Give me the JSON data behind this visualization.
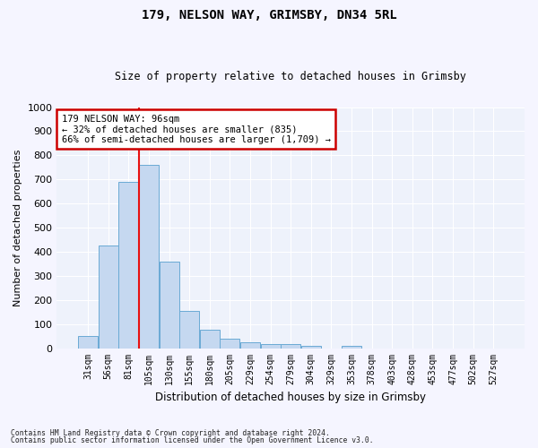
{
  "title1": "179, NELSON WAY, GRIMSBY, DN34 5RL",
  "title2": "Size of property relative to detached houses in Grimsby",
  "xlabel": "Distribution of detached houses by size in Grimsby",
  "ylabel": "Number of detached properties",
  "bar_labels": [
    "31sqm",
    "56sqm",
    "81sqm",
    "105sqm",
    "130sqm",
    "155sqm",
    "180sqm",
    "205sqm",
    "229sqm",
    "254sqm",
    "279sqm",
    "304sqm",
    "329sqm",
    "353sqm",
    "378sqm",
    "403sqm",
    "428sqm",
    "453sqm",
    "477sqm",
    "502sqm",
    "527sqm"
  ],
  "bar_values": [
    50,
    425,
    690,
    760,
    360,
    155,
    75,
    40,
    25,
    18,
    18,
    10,
    0,
    10,
    0,
    0,
    0,
    0,
    0,
    0,
    0
  ],
  "bar_color": "#c5d8f0",
  "bar_edge_color": "#6aaad4",
  "vline_x_idx": 2.5,
  "vline_color": "#e81010",
  "ylim": [
    0,
    1000
  ],
  "yticks": [
    0,
    100,
    200,
    300,
    400,
    500,
    600,
    700,
    800,
    900,
    1000
  ],
  "annotation_text": "179 NELSON WAY: 96sqm\n← 32% of detached houses are smaller (835)\n66% of semi-detached houses are larger (1,709) →",
  "annotation_box_facecolor": "#ffffff",
  "annotation_box_edgecolor": "#cc0000",
  "bg_color": "#eef2fb",
  "grid_color": "#ffffff",
  "fig_facecolor": "#f5f5ff",
  "footer1": "Contains HM Land Registry data © Crown copyright and database right 2024.",
  "footer2": "Contains public sector information licensed under the Open Government Licence v3.0."
}
